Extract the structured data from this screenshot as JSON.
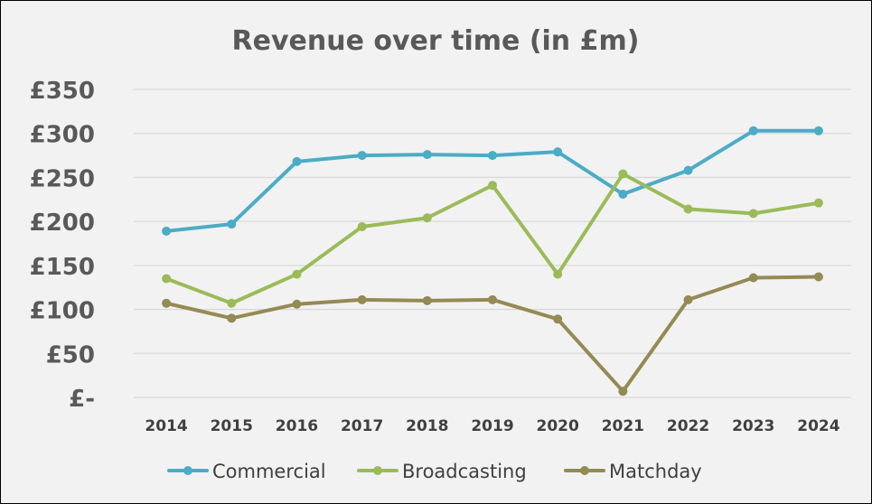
{
  "chart_data": {
    "type": "line",
    "title": "Revenue over time (in £m)",
    "xlabel": "",
    "ylabel": "",
    "x": [
      "2014",
      "2015",
      "2016",
      "2017",
      "2018",
      "2019",
      "2020",
      "2021",
      "2022",
      "2023",
      "2024"
    ],
    "ylim": [
      0,
      350
    ],
    "y_ticks": [
      0,
      50,
      100,
      150,
      200,
      250,
      300,
      350
    ],
    "y_tick_labels": [
      "£-",
      "£50",
      "£100",
      "£150",
      "£200",
      "£250",
      "£300",
      "£350"
    ],
    "grid": true,
    "legend_position": "bottom",
    "series": [
      {
        "name": "Commercial",
        "color": "#4bacc6",
        "values": [
          189,
          197,
          268,
          275,
          276,
          275,
          279,
          231,
          258,
          303,
          303
        ]
      },
      {
        "name": "Broadcasting",
        "color": "#9bbb59",
        "values": [
          135,
          107,
          140,
          194,
          204,
          241,
          140,
          254,
          214,
          209,
          221
        ]
      },
      {
        "name": "Matchday",
        "color": "#948a54",
        "values": [
          107,
          90,
          106,
          111,
          110,
          111,
          89,
          7,
          111,
          136,
          137
        ]
      }
    ]
  }
}
